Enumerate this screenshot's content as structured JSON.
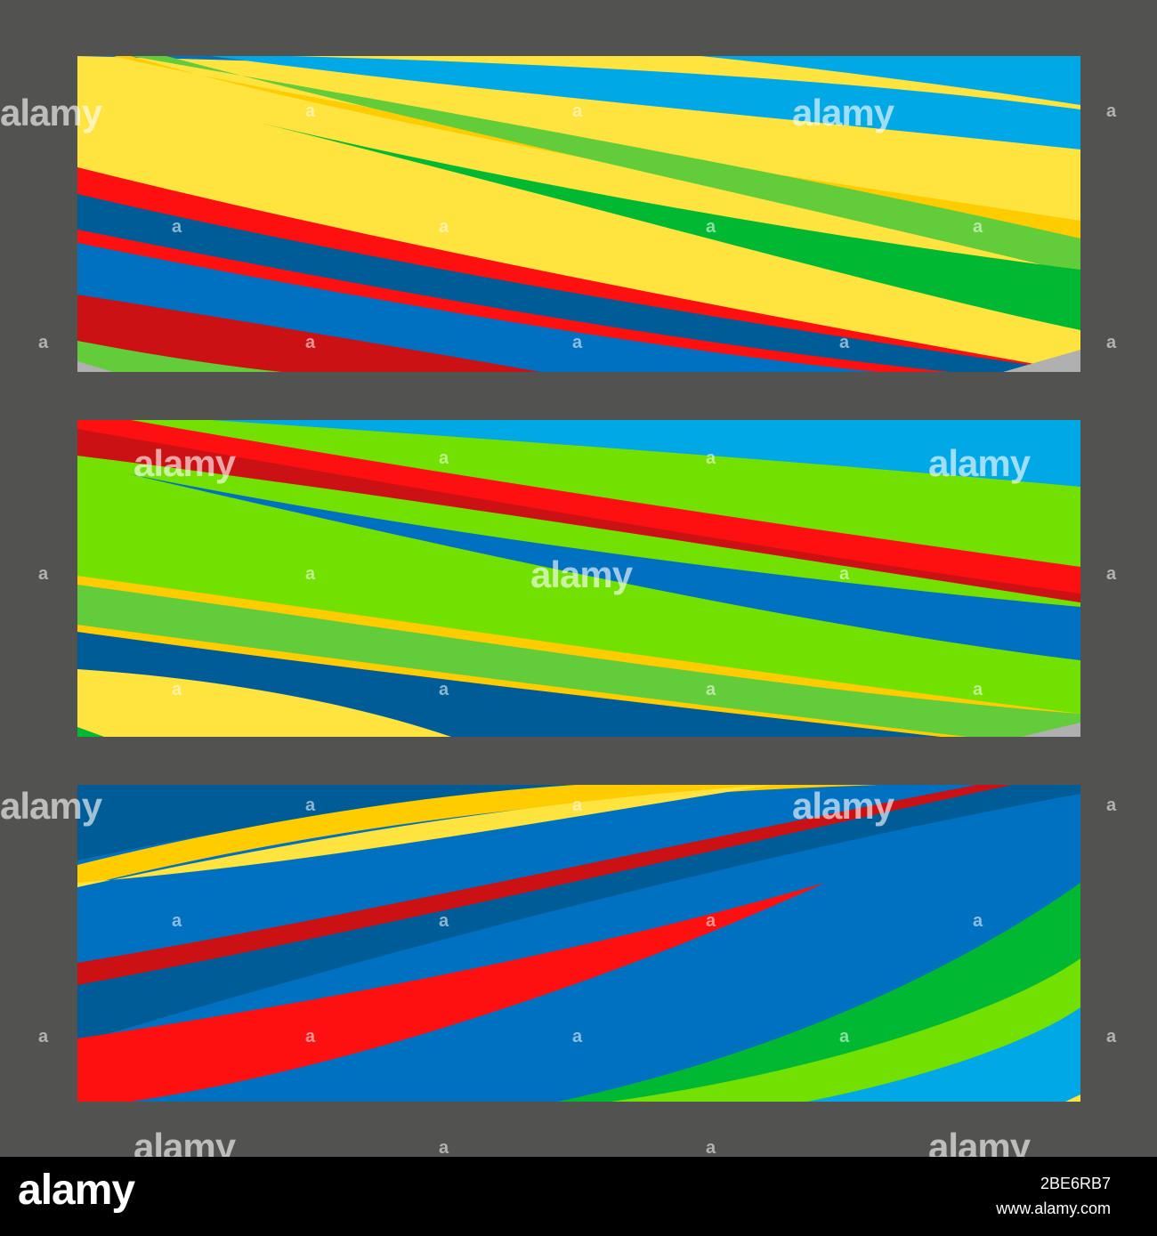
{
  "watermark": {
    "text": "alamy",
    "mark": "a"
  },
  "footer": {
    "logo": "alamy",
    "image_id": "2BE6RB7",
    "url": "www.alamy.com"
  },
  "colors": {
    "background": "#525250",
    "yellow": "#FFE33E",
    "gold": "#FFCC00",
    "lime": "#72E000",
    "light_green": "#62CC3A",
    "green": "#00B832",
    "sky_blue": "#00A8E6",
    "blue": "#006FC0",
    "dark_blue": "#005C96",
    "red": "#FF1010",
    "dark_red": "#CC1114"
  }
}
